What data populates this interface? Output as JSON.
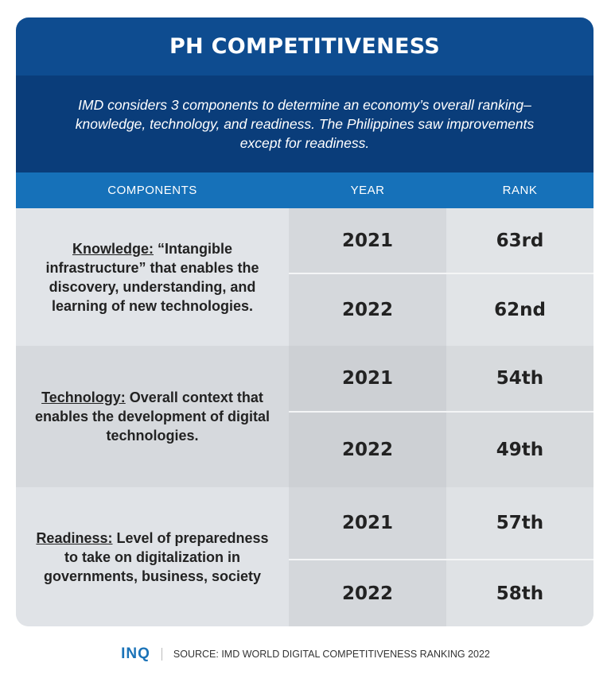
{
  "title": "PH COMPETITIVENESS",
  "subtitle": "IMD considers 3 components to determine an economy’s overall ranking–knowledge, technology, and readiness. The Philippines saw improvements except for readiness.",
  "headers": [
    "COMPONENTS",
    "YEAR",
    "RANK"
  ],
  "groups": [
    {
      "name": "Knowledge:",
      "desc": " “Intangible infrastructure” that enables the discovery, understanding, and learning of new technologies.",
      "rows": [
        {
          "year": "2021",
          "rank": "63rd"
        },
        {
          "year": "2022",
          "rank": "62nd"
        }
      ]
    },
    {
      "name": "Technology:",
      "desc": " Overall context that enables the development of digital technologies.",
      "rows": [
        {
          "year": "2021",
          "rank": "54th"
        },
        {
          "year": "2022",
          "rank": "49th"
        }
      ]
    },
    {
      "name": "Readiness:",
      "desc": " Level of preparedness to take on digitalization in governments, business, society",
      "rows": [
        {
          "year": "2021",
          "rank": "57th"
        },
        {
          "year": "2022",
          "rank": "58th"
        }
      ]
    }
  ],
  "footer": {
    "logo": "INQ",
    "source": "SOURCE: IMD WORLD DIGITAL COMPETITIVENESS RANKING 2022"
  },
  "colors": {
    "title_bg": "#0e4c90",
    "subtitle_bg": "#0a3d7a",
    "header_bg": "#1671b9",
    "logo": "#1b73b8"
  }
}
